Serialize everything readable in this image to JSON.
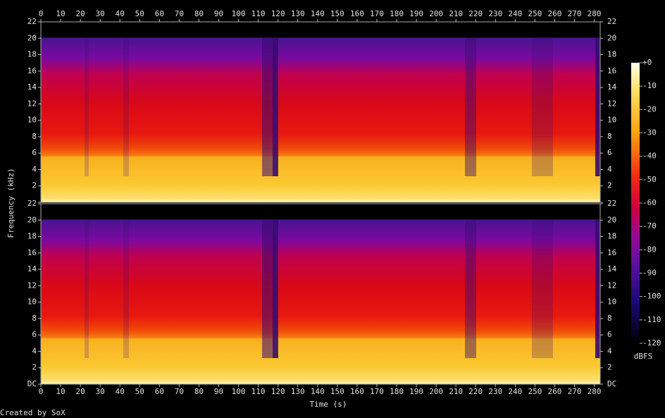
{
  "chart_data": {
    "type": "spectrogram",
    "x_label": "Time (s)",
    "y_label": "Frequency (kHz)",
    "channels": 2,
    "xlim": [
      0,
      283
    ],
    "xticks": [
      0,
      10,
      20,
      30,
      40,
      50,
      60,
      70,
      80,
      90,
      100,
      110,
      120,
      130,
      140,
      150,
      160,
      170,
      180,
      190,
      200,
      210,
      220,
      230,
      240,
      250,
      260,
      270,
      280
    ],
    "ylim": [
      0,
      22
    ],
    "yticks": [
      {
        "value": 0,
        "label": "DC"
      },
      2,
      4,
      6,
      8,
      10,
      12,
      14,
      16,
      18,
      20,
      22
    ],
    "colorbar": {
      "label": "dBFS",
      "lim": [
        -120,
        0
      ],
      "ticks": [
        {
          "value": 0,
          "label": "+0"
        },
        -10,
        -20,
        -30,
        -40,
        -50,
        -60,
        -70,
        -80,
        -90,
        -100,
        -110,
        -120
      ]
    }
  },
  "footer": "Created by SoX"
}
